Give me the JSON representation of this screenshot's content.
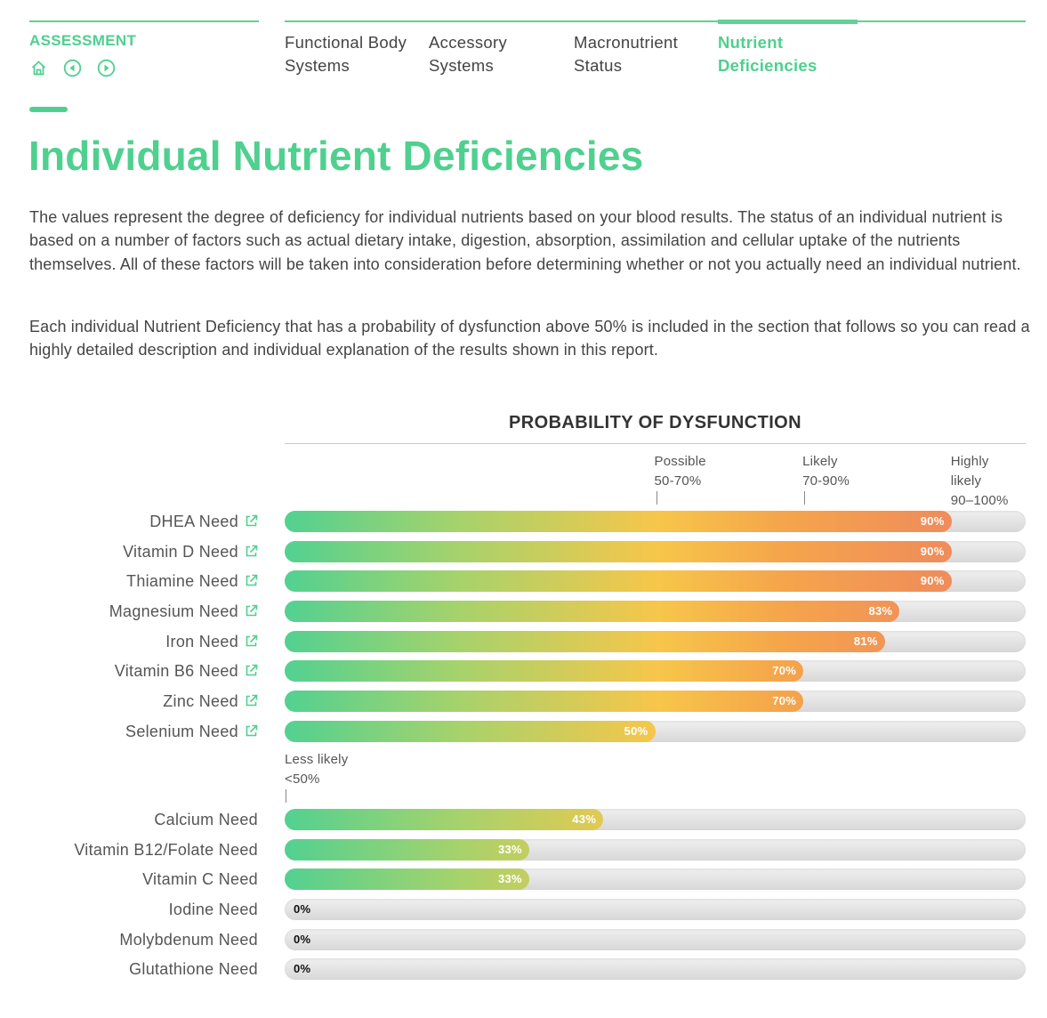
{
  "header": {
    "section_label": "ASSESSMENT",
    "tabs": [
      {
        "line1": "Functional Body",
        "line2": "Systems",
        "active": false
      },
      {
        "line1": "Accessory",
        "line2": "Systems",
        "active": false
      },
      {
        "line1": "Macronutrient",
        "line2": "Status",
        "active": false
      },
      {
        "line1": "Nutrient",
        "line2": "Deficiencies",
        "active": true
      }
    ],
    "icons": [
      "home-icon",
      "previous-icon",
      "next-icon"
    ]
  },
  "page": {
    "title": "Individual Nutrient Deficiencies",
    "paragraph1": "The values represent the degree of deficiency for individual nutrients based on your blood results. The status of an individual nutrient is based on a number of factors such as actual dietary intake, digestion, absorption, assimilation and cellular uptake of the nutrients themselves. All of these factors will be taken into consideration before determining whether or not you actually need an individual nutrient.",
    "paragraph2": "Each individual Nutrient Deficiency that has a probability of dysfunction above 50% is included in the section that follows so you can read a highly detailed description and individual explanation of the results shown in this report."
  },
  "colors": {
    "accent": "#4fd08f",
    "bar_low": "#52d191",
    "bar_mid": "#f7c64a",
    "bar_high": "#ef8d5b",
    "track": "#e2e2e2"
  },
  "chart_data": {
    "type": "bar",
    "orientation": "horizontal",
    "title": "PROBABILITY OF DYSFUNCTION",
    "xlim": [
      0,
      100
    ],
    "zones": [
      {
        "name": "Possible",
        "range": "50-70%",
        "at": 50
      },
      {
        "name": "Likely",
        "range": "70-90%",
        "at": 70
      },
      {
        "name": "Highly likely",
        "range": "90–100%",
        "at": 90
      }
    ],
    "lower_zone": {
      "name": "Less likely",
      "range": "<50%"
    },
    "categories": [
      "DHEA Need",
      "Vitamin D Need",
      "Thiamine Need",
      "Magnesium Need",
      "Iron Need",
      "Vitamin B6 Need",
      "Zinc Need",
      "Selenium Need",
      "Calcium Need",
      "Vitamin B12/Folate Need",
      "Vitamin C Need",
      "Iodine Need",
      "Molybdenum Need",
      "Glutathione Need"
    ],
    "values": [
      90,
      90,
      90,
      83,
      81,
      70,
      70,
      50,
      43,
      33,
      33,
      0,
      0,
      0
    ],
    "value_labels": [
      "90%",
      "90%",
      "90%",
      "83%",
      "81%",
      "70%",
      "70%",
      "50%",
      "43%",
      "33%",
      "33%",
      "0%",
      "0%",
      "0%"
    ],
    "has_link": [
      true,
      true,
      true,
      true,
      true,
      true,
      true,
      true,
      false,
      false,
      false,
      false,
      false,
      false
    ]
  }
}
